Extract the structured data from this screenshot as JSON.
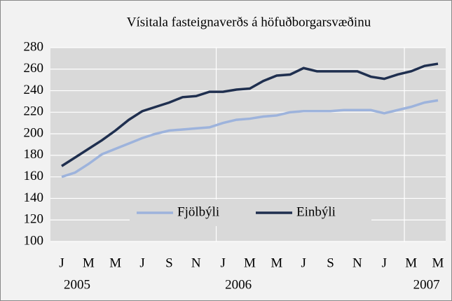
{
  "chart_data": {
    "type": "line",
    "title": "Vísitala fasteignaverðs á höfuðborgarsvæðinu",
    "categories": [
      "J",
      null,
      "M",
      null,
      "M",
      null,
      "J",
      null,
      "S",
      null,
      "N",
      null,
      "J",
      null,
      "M",
      null,
      "M",
      null,
      "J",
      null,
      "S",
      null,
      "N",
      null,
      "J",
      null,
      "M",
      null,
      "M"
    ],
    "year_labels": [
      {
        "index": 0,
        "label": "2005"
      },
      {
        "index": 12,
        "label": "2006"
      },
      {
        "index": 26,
        "label": "2007"
      }
    ],
    "series": [
      {
        "name": "Fjölbýli",
        "color": "#9db3dc",
        "values": [
          160,
          164,
          172,
          181,
          186,
          191,
          196,
          200,
          203,
          204,
          205,
          206,
          210,
          213,
          214,
          216,
          217,
          220,
          221,
          221,
          221,
          222,
          222,
          222,
          219,
          222,
          225,
          229,
          231
        ]
      },
      {
        "name": "Einbýli",
        "color": "#1f2f4f",
        "values": [
          170,
          178,
          186,
          194,
          203,
          213,
          221,
          225,
          229,
          234,
          235,
          239,
          239,
          241,
          242,
          249,
          254,
          255,
          261,
          258,
          258,
          258,
          258,
          253,
          251,
          255,
          258,
          263,
          265
        ]
      }
    ],
    "ylim": [
      100,
      280
    ],
    "yticks": [
      100,
      120,
      140,
      160,
      180,
      200,
      220,
      240,
      260,
      280
    ],
    "grid": true,
    "legend": "center"
  }
}
